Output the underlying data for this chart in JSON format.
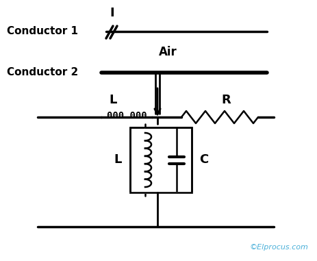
{
  "background_color": "#ffffff",
  "conductor1_label": "Conductor 1",
  "conductor2_label": "Conductor 2",
  "air_label": "Air",
  "L_label_top": "L",
  "R_label": "R",
  "L_label_bottom": "L",
  "C_label": "C",
  "I_label": "I",
  "copyright": "©Elprocus.com",
  "copyright_color": "#4ab0d9",
  "line_color": "#000000",
  "text_color": "#000000",
  "figsize": [
    4.63,
    3.81
  ],
  "dpi": 100
}
